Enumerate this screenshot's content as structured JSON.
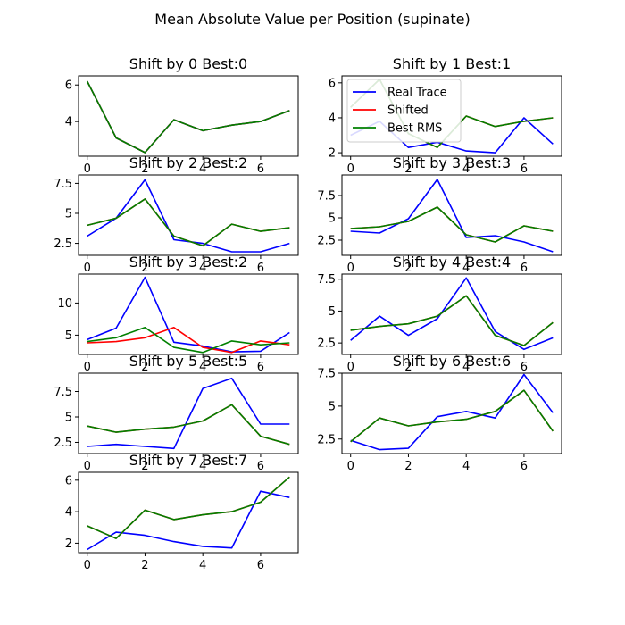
{
  "figure": {
    "suptitle": "Mean Absolute Value per Position (supinate)"
  },
  "colors": {
    "real": "#0000ff",
    "shifted": "#ff0000",
    "best": "#008000"
  },
  "legend": {
    "placement": "upper-left of panel 2",
    "entries": [
      "Real Trace",
      "Shifted",
      "Best RMS"
    ]
  },
  "chart_data": [
    {
      "type": "line",
      "title": "Shift by 0 Best:0",
      "x": [
        0,
        1,
        2,
        3,
        4,
        5,
        6,
        7
      ],
      "xticks": [
        0,
        2,
        4,
        6
      ],
      "yticks": [
        4,
        6
      ],
      "ylim": [
        2.1,
        6.5
      ],
      "series": [
        {
          "name": "Real Trace",
          "values": [
            6.2,
            3.1,
            2.3,
            4.1,
            3.5,
            3.8,
            4.0,
            4.6
          ]
        },
        {
          "name": "Shifted",
          "values": [
            6.2,
            3.1,
            2.3,
            4.1,
            3.5,
            3.8,
            4.0,
            4.6
          ]
        },
        {
          "name": "Best RMS",
          "values": [
            6.2,
            3.1,
            2.3,
            4.1,
            3.5,
            3.8,
            4.0,
            4.6
          ]
        }
      ]
    },
    {
      "type": "line",
      "title": "Shift by 1 Best:1",
      "x": [
        0,
        1,
        2,
        3,
        4,
        5,
        6,
        7
      ],
      "xticks": [
        0,
        2,
        4,
        6
      ],
      "yticks": [
        2,
        4,
        6
      ],
      "ylim": [
        1.8,
        6.4
      ],
      "series": [
        {
          "name": "Real Trace",
          "values": [
            3.0,
            3.8,
            2.3,
            2.6,
            2.1,
            2.0,
            4.0,
            2.5
          ]
        },
        {
          "name": "Shifted",
          "values": [
            4.6,
            6.2,
            3.1,
            2.3,
            4.1,
            3.5,
            3.8,
            4.0
          ]
        },
        {
          "name": "Best RMS",
          "values": [
            4.6,
            6.2,
            3.1,
            2.3,
            4.1,
            3.5,
            3.8,
            4.0
          ]
        }
      ]
    },
    {
      "type": "line",
      "title": "Shift by 2 Best:2",
      "x": [
        0,
        1,
        2,
        3,
        4,
        5,
        6,
        7
      ],
      "xticks": [
        0,
        2,
        4,
        6
      ],
      "yticks": [
        2.5,
        5.0,
        7.5
      ],
      "ylim": [
        1.5,
        8.2
      ],
      "series": [
        {
          "name": "Real Trace",
          "values": [
            3.1,
            4.6,
            7.8,
            2.8,
            2.5,
            1.8,
            1.8,
            2.5
          ]
        },
        {
          "name": "Shifted",
          "values": [
            4.0,
            4.6,
            6.2,
            3.1,
            2.3,
            4.1,
            3.5,
            3.8
          ]
        },
        {
          "name": "Best RMS",
          "values": [
            4.0,
            4.6,
            6.2,
            3.1,
            2.3,
            4.1,
            3.5,
            3.8
          ]
        }
      ]
    },
    {
      "type": "line",
      "title": "Shift by 3 Best:3",
      "x": [
        0,
        1,
        2,
        3,
        4,
        5,
        6,
        7
      ],
      "xticks": [
        0,
        2,
        4,
        6
      ],
      "yticks": [
        2.5,
        5.0,
        7.5
      ],
      "ylim": [
        0.8,
        9.8
      ],
      "series": [
        {
          "name": "Real Trace",
          "values": [
            3.5,
            3.3,
            4.9,
            9.3,
            2.8,
            3.0,
            2.3,
            1.2
          ]
        },
        {
          "name": "Shifted",
          "values": [
            3.8,
            4.0,
            4.6,
            6.2,
            3.1,
            2.3,
            4.1,
            3.5
          ]
        },
        {
          "name": "Best RMS",
          "values": [
            3.8,
            4.0,
            4.6,
            6.2,
            3.1,
            2.3,
            4.1,
            3.5
          ]
        }
      ]
    },
    {
      "type": "line",
      "title": "Shift by 3 Best:2",
      "x": [
        0,
        1,
        2,
        3,
        4,
        5,
        6,
        7
      ],
      "xticks": [
        0,
        2,
        4,
        6
      ],
      "yticks": [
        5,
        10
      ],
      "ylim": [
        2.0,
        14.5
      ],
      "series": [
        {
          "name": "Real Trace",
          "values": [
            4.3,
            6.1,
            14.0,
            3.9,
            3.3,
            2.4,
            2.5,
            5.4
          ]
        },
        {
          "name": "Shifted",
          "values": [
            3.8,
            4.0,
            4.6,
            6.2,
            3.1,
            2.3,
            4.1,
            3.5
          ]
        },
        {
          "name": "Best RMS",
          "values": [
            4.0,
            4.6,
            6.2,
            3.1,
            2.3,
            4.1,
            3.5,
            3.8
          ]
        }
      ]
    },
    {
      "type": "line",
      "title": "Shift by 4 Best:4",
      "x": [
        0,
        1,
        2,
        3,
        4,
        5,
        6,
        7
      ],
      "xticks": [
        0,
        2,
        4,
        6
      ],
      "yticks": [
        2.5,
        5.0,
        7.5
      ],
      "ylim": [
        1.6,
        7.9
      ],
      "series": [
        {
          "name": "Real Trace",
          "values": [
            2.7,
            4.6,
            3.1,
            4.4,
            7.6,
            3.4,
            2.0,
            2.9
          ]
        },
        {
          "name": "Shifted",
          "values": [
            3.5,
            3.8,
            4.0,
            4.6,
            6.2,
            3.1,
            2.3,
            4.1
          ]
        },
        {
          "name": "Best RMS",
          "values": [
            3.5,
            3.8,
            4.0,
            4.6,
            6.2,
            3.1,
            2.3,
            4.1
          ]
        }
      ]
    },
    {
      "type": "line",
      "title": "Shift by 5 Best:5",
      "x": [
        0,
        1,
        2,
        3,
        4,
        5,
        6,
        7
      ],
      "xticks": [
        0,
        2,
        4,
        6
      ],
      "yticks": [
        2.5,
        5.0,
        7.5
      ],
      "ylim": [
        1.4,
        9.3
      ],
      "series": [
        {
          "name": "Real Trace",
          "values": [
            2.1,
            2.3,
            2.1,
            1.9,
            7.8,
            8.8,
            4.3,
            4.3
          ]
        },
        {
          "name": "Shifted",
          "values": [
            4.1,
            3.5,
            3.8,
            4.0,
            4.6,
            6.2,
            3.1,
            2.3
          ]
        },
        {
          "name": "Best RMS",
          "values": [
            4.1,
            3.5,
            3.8,
            4.0,
            4.6,
            6.2,
            3.1,
            2.3
          ]
        }
      ]
    },
    {
      "type": "line",
      "title": "Shift by 6 Best:6",
      "x": [
        0,
        1,
        2,
        3,
        4,
        5,
        6,
        7
      ],
      "xticks": [
        0,
        2,
        4,
        6
      ],
      "yticks": [
        2.5,
        5.0,
        7.5
      ],
      "ylim": [
        1.4,
        7.5
      ],
      "series": [
        {
          "name": "Real Trace",
          "values": [
            2.4,
            1.7,
            1.8,
            4.2,
            4.6,
            4.1,
            7.4,
            4.5
          ]
        },
        {
          "name": "Shifted",
          "values": [
            2.3,
            4.1,
            3.5,
            3.8,
            4.0,
            4.6,
            6.2,
            3.1
          ]
        },
        {
          "name": "Best RMS",
          "values": [
            2.3,
            4.1,
            3.5,
            3.8,
            4.0,
            4.6,
            6.2,
            3.1
          ]
        }
      ]
    },
    {
      "type": "line",
      "title": "Shift by 7 Best:7",
      "x": [
        0,
        1,
        2,
        3,
        4,
        5,
        6,
        7
      ],
      "xticks": [
        0,
        2,
        4,
        6
      ],
      "yticks": [
        2,
        4,
        6
      ],
      "ylim": [
        1.4,
        6.5
      ],
      "series": [
        {
          "name": "Real Trace",
          "values": [
            1.6,
            2.7,
            2.5,
            2.1,
            1.8,
            1.7,
            5.3,
            4.9
          ]
        },
        {
          "name": "Shifted",
          "values": [
            3.1,
            2.3,
            4.1,
            3.5,
            3.8,
            4.0,
            4.6,
            6.2
          ]
        },
        {
          "name": "Best RMS",
          "values": [
            3.1,
            2.3,
            4.1,
            3.5,
            3.8,
            4.0,
            4.6,
            6.2
          ]
        }
      ]
    }
  ]
}
